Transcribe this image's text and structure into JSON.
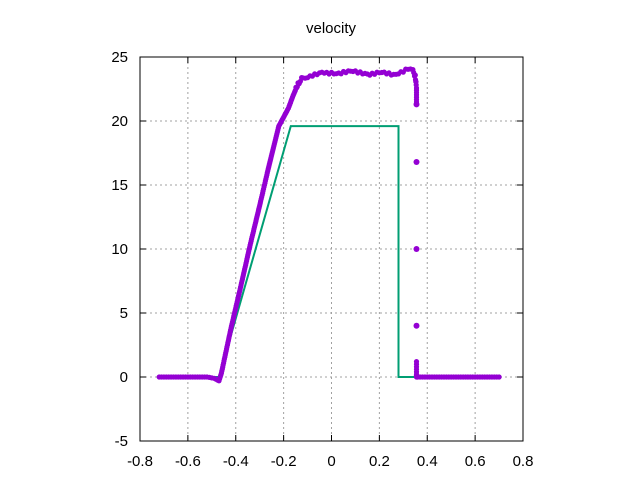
{
  "chart_data": {
    "type": "line",
    "title": "velocity",
    "xlabel": "",
    "ylabel": "",
    "xlim": [
      -0.8,
      0.8
    ],
    "ylim": [
      -5,
      25
    ],
    "xticks": [
      -0.8,
      -0.6,
      -0.4,
      -0.2,
      0,
      0.2,
      0.4,
      0.6,
      0.8
    ],
    "yticks": [
      -5,
      0,
      5,
      10,
      15,
      20,
      25
    ],
    "xtick_labels": [
      "-0.8",
      "-0.6",
      "-0.4",
      "-0.2",
      "0",
      "0.2",
      "0.4",
      "0.6",
      "0.8"
    ],
    "ytick_labels": [
      "-5",
      "0",
      "5",
      "10",
      "15",
      "20",
      "25"
    ],
    "grid": true,
    "legend": "none",
    "series": [
      {
        "kind": "line",
        "color": "#009e73",
        "x": [
          -0.72,
          -0.47,
          -0.17,
          0.28,
          0.28,
          0.36,
          0.7
        ],
        "y": [
          0,
          0,
          19.6,
          19.6,
          0,
          0,
          0
        ]
      },
      {
        "kind": "points",
        "color": "#9400d3",
        "x": [
          -0.72,
          -0.65,
          -0.58,
          -0.52,
          -0.49,
          -0.47,
          -0.46,
          -0.42,
          -0.38,
          -0.34,
          -0.3,
          -0.26,
          -0.22,
          -0.18,
          -0.16,
          -0.14,
          -0.12,
          -0.1,
          -0.08,
          -0.06,
          -0.04,
          -0.02,
          0.0,
          0.02,
          0.04,
          0.06,
          0.08,
          0.1,
          0.12,
          0.14,
          0.16,
          0.18,
          0.2,
          0.22,
          0.24,
          0.26,
          0.28,
          0.3,
          0.32,
          0.34,
          0.35,
          0.355,
          0.355,
          0.355,
          0.355,
          0.355,
          0.355,
          0.355,
          0.355,
          0.355,
          0.36,
          0.4,
          0.45,
          0.5,
          0.55,
          0.6,
          0.65,
          0.7
        ],
        "y": [
          0,
          0,
          0,
          0,
          -0.1,
          -0.3,
          0.3,
          3.8,
          7.0,
          10.3,
          13.4,
          16.6,
          19.6,
          21.0,
          22.0,
          22.9,
          23.4,
          23.5,
          23.6,
          23.6,
          23.7,
          23.7,
          23.8,
          23.8,
          23.8,
          23.8,
          23.8,
          23.8,
          23.8,
          23.8,
          23.7,
          23.7,
          23.7,
          23.7,
          23.7,
          23.7,
          23.8,
          23.9,
          24.0,
          23.9,
          23.5,
          22.6,
          21.3,
          16.8,
          10.0,
          4.0,
          1.2,
          0.2,
          0.1,
          0,
          0,
          0,
          0,
          0,
          0,
          0,
          0,
          0
        ]
      }
    ]
  }
}
